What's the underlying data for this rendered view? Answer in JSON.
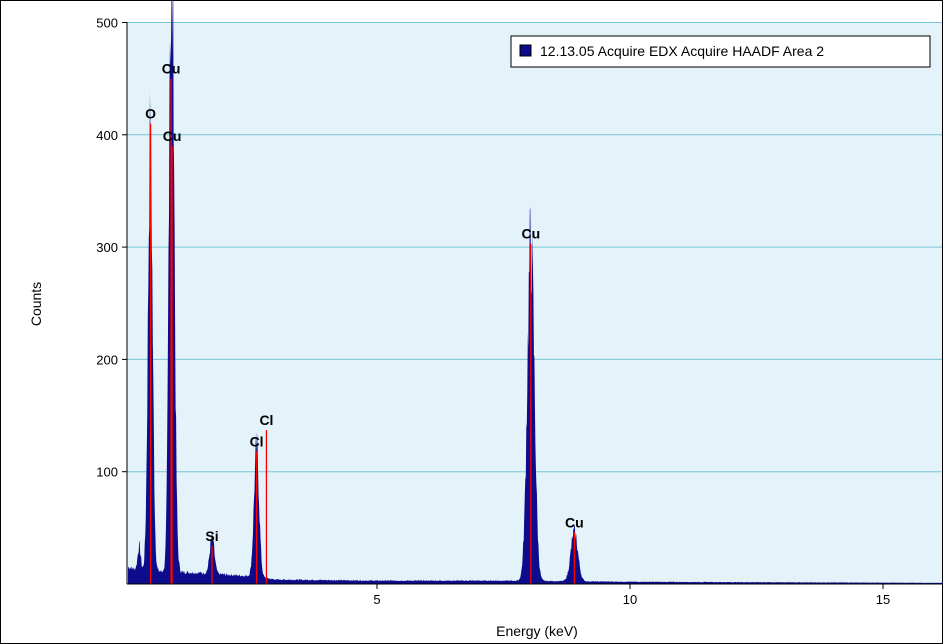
{
  "chart_data": {
    "type": "area",
    "title": "",
    "xlabel": "Energy (keV)",
    "ylabel": "Counts",
    "xlim": [
      0,
      16.2
    ],
    "ylim": [
      0,
      505
    ],
    "x_ticks": [
      5,
      10,
      15
    ],
    "y_ticks": [
      100,
      200,
      300,
      400,
      500
    ],
    "grid": "horizontal",
    "legend_position": "top-right",
    "colors": {
      "plot_background": "#e4f2f9",
      "gridline": "#79c5d8",
      "spectrum_fill": "#0c0c8c",
      "peak_marker": "#ff0000",
      "legend_swatch": "#0c0c8c"
    },
    "series": [
      {
        "name": "12.13.05 Acquire EDX Acquire HAADF Area 2",
        "background": [
          [
            0.1,
            15
          ],
          [
            0.3,
            12
          ],
          [
            1.5,
            10
          ],
          [
            2.5,
            7
          ],
          [
            3.0,
            4
          ],
          [
            5.0,
            3
          ],
          [
            7.5,
            3
          ],
          [
            10.0,
            2
          ],
          [
            16.2,
            1
          ]
        ],
        "peaks": [
          {
            "center": 0.3,
            "height": 22,
            "width": 0.03
          },
          {
            "center": 0.52,
            "height": 388,
            "width": 0.045
          },
          {
            "center": 0.93,
            "height": 305,
            "width": 0.04
          },
          {
            "center": 0.95,
            "height": 380,
            "width": 0.05
          },
          {
            "center": 1.74,
            "height": 32,
            "width": 0.045
          },
          {
            "center": 2.62,
            "height": 115,
            "width": 0.05
          },
          {
            "center": 8.04,
            "height": 302,
            "width": 0.07
          },
          {
            "center": 8.9,
            "height": 44,
            "width": 0.07
          }
        ]
      }
    ],
    "peak_labels": [
      {
        "text": "O",
        "x": 0.525,
        "marker_top": 410
      },
      {
        "text": "Cu",
        "x": 0.93,
        "marker_top": 450
      },
      {
        "text": "Cu",
        "x": 0.95,
        "marker_top": 390
      },
      {
        "text": "Si",
        "x": 1.74,
        "marker_top": 34
      },
      {
        "text": "Cl",
        "x": 2.62,
        "marker_top": 118
      },
      {
        "text": "Cl",
        "x": 2.815,
        "marker_top": 137
      },
      {
        "text": "Cu",
        "x": 8.04,
        "marker_top": 303
      },
      {
        "text": "Cu",
        "x": 8.9,
        "marker_top": 46
      }
    ]
  }
}
